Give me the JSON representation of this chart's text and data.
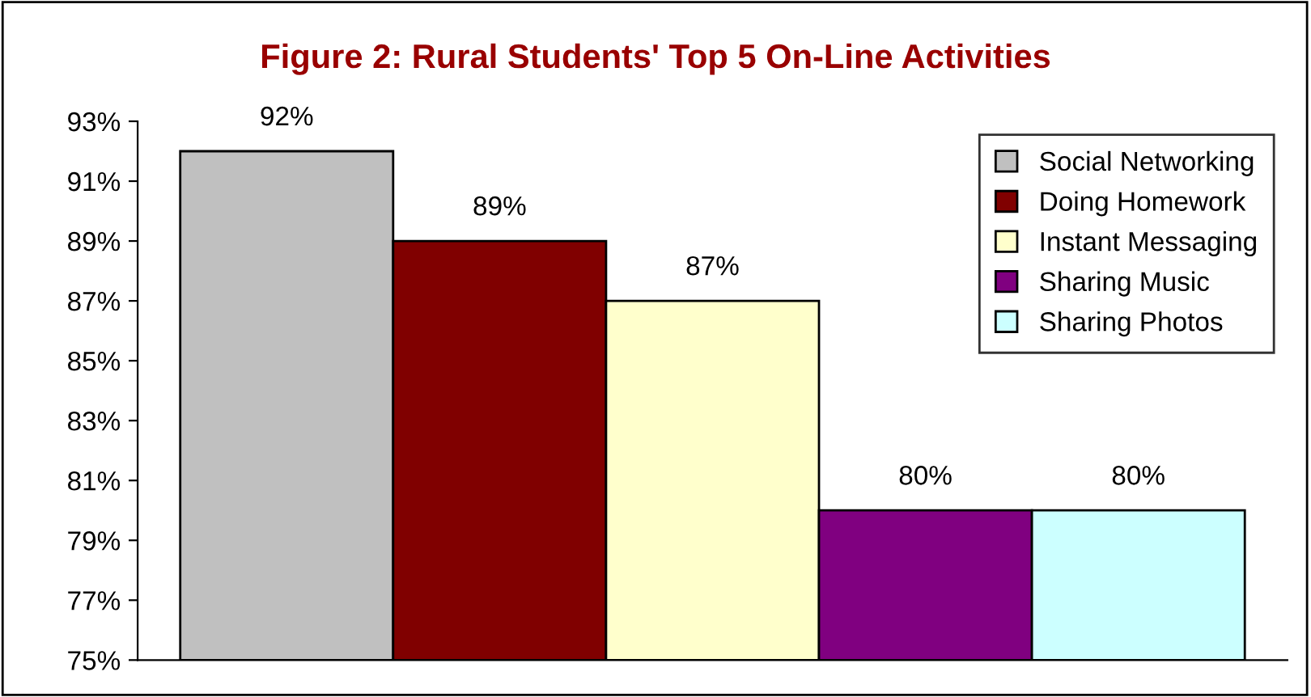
{
  "chart_data": {
    "type": "bar",
    "title": "Figure 2: Rural Students' Top 5 On-Line Activities",
    "categories": [
      null
    ],
    "series": [
      {
        "name": "Social Networking",
        "color": "#c0c0c0",
        "values": [
          92
        ],
        "value_labels": [
          "92%"
        ]
      },
      {
        "name": "Doing Homework",
        "color": "#800000",
        "values": [
          89
        ],
        "value_labels": [
          "89%"
        ]
      },
      {
        "name": "Instant Messaging",
        "color": "#ffffcc",
        "values": [
          87
        ],
        "value_labels": [
          "87%"
        ]
      },
      {
        "name": "Sharing Music",
        "color": "#800080",
        "values": [
          80
        ],
        "value_labels": [
          "80%"
        ]
      },
      {
        "name": "Sharing Photos",
        "color": "#ccffff",
        "values": [
          80
        ],
        "value_labels": [
          "80%"
        ]
      }
    ],
    "ylim": [
      75,
      93
    ],
    "yticks": [
      {
        "value": 75,
        "label": "75%"
      },
      {
        "value": 77,
        "label": "77%"
      },
      {
        "value": 79,
        "label": "79%"
      },
      {
        "value": 81,
        "label": "81%"
      },
      {
        "value": 83,
        "label": "83%"
      },
      {
        "value": 85,
        "label": "85%"
      },
      {
        "value": 87,
        "label": "87%"
      },
      {
        "value": 89,
        "label": "89%"
      },
      {
        "value": 91,
        "label": "91%"
      },
      {
        "value": 93,
        "label": "93%"
      }
    ],
    "grid": false,
    "legend": "top right"
  }
}
